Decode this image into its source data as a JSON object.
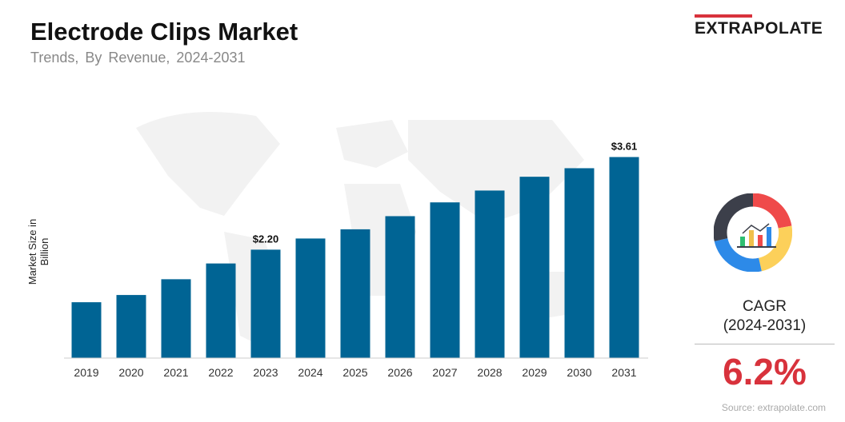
{
  "header": {
    "title": "Electrode Clips Market",
    "subtitle": "Trends, By Revenue, 2024-2031"
  },
  "logo": {
    "text": "EXTRAPOLATE",
    "accent": "#d8323c"
  },
  "sidebar": {
    "cagr_label": "CAGR",
    "cagr_period": "(2024-2031)",
    "cagr_value": "6.2%",
    "icon": "donut-chart-icon"
  },
  "source": "Source: extrapolate.com",
  "chart_data": {
    "type": "bar",
    "title": "Electrode Clips Market",
    "ylabel": "Market Size in Billion",
    "xlabel": "",
    "categories": [
      "2019",
      "2020",
      "2021",
      "2022",
      "2023",
      "2024",
      "2025",
      "2026",
      "2027",
      "2028",
      "2029",
      "2030",
      "2031"
    ],
    "values": [
      1.4,
      1.51,
      1.75,
      1.99,
      2.2,
      2.37,
      2.51,
      2.71,
      2.92,
      3.1,
      3.31,
      3.44,
      3.61
    ],
    "data_labels": {
      "4": "$2.20",
      "12": "$3.61"
    },
    "ylim": [
      0.55,
      4.2
    ],
    "bar_color": "#006494",
    "grid": false
  }
}
